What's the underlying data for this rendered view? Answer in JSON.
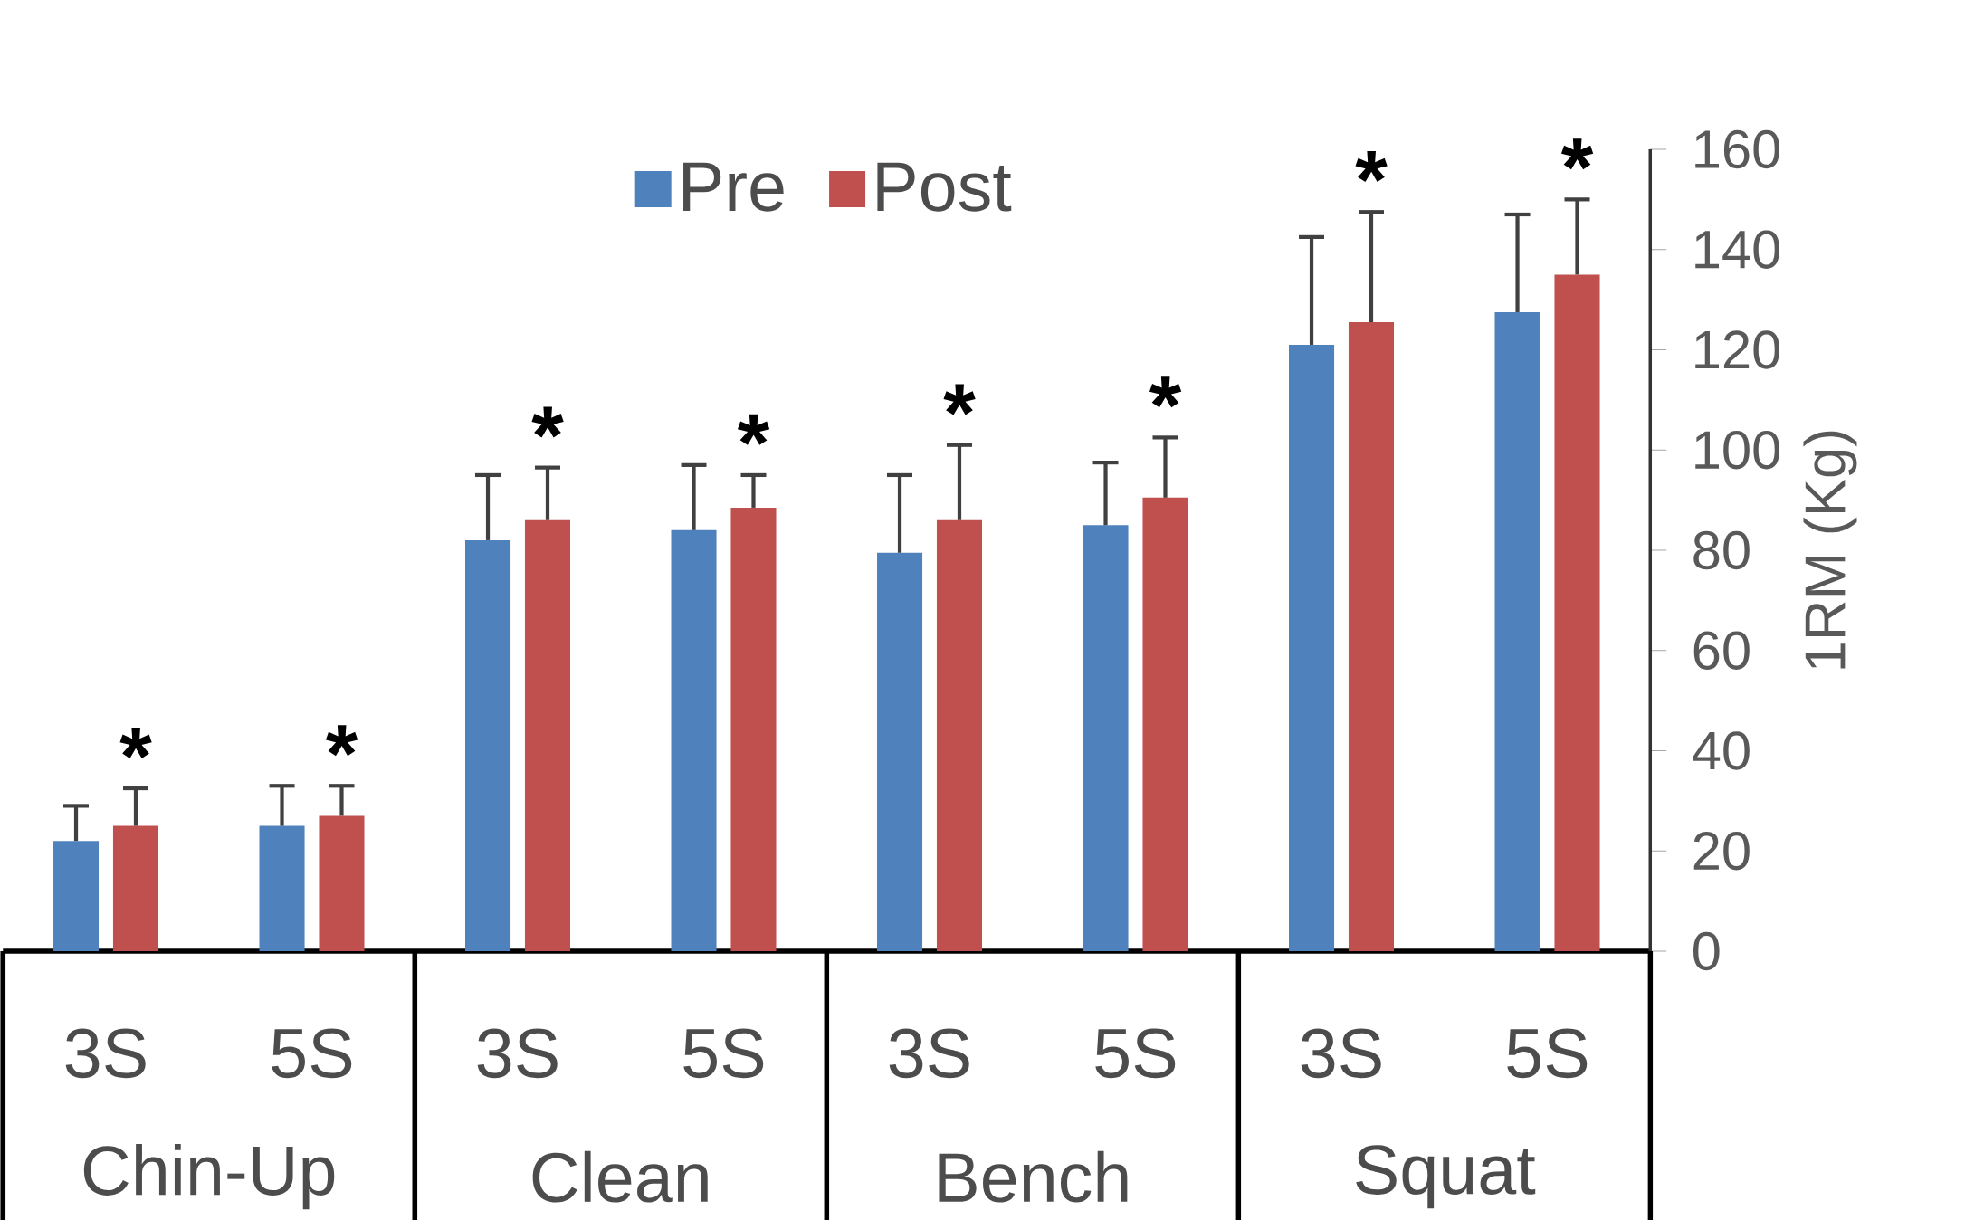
{
  "chart_data": {
    "type": "bar",
    "ylabel": "1RM (Kg)",
    "categories": [
      "3S",
      "5S",
      "3S",
      "5S",
      "3S",
      "5S",
      "3S",
      "5S"
    ],
    "series": [
      {
        "name": "Pre",
        "color": "#4f81bd",
        "values": [
          22,
          25,
          82,
          84,
          79.5,
          85,
          121,
          127.5
        ],
        "errors": [
          [
            22,
            29
          ],
          [
            25,
            33
          ],
          [
            82,
            95
          ],
          [
            84,
            97
          ],
          [
            79.5,
            95
          ],
          [
            85,
            97.5
          ],
          [
            121,
            142.5
          ],
          [
            127.5,
            147
          ]
        ]
      },
      {
        "name": "Post",
        "color": "#c0504d",
        "values": [
          25,
          27,
          86,
          88.5,
          86,
          90.5,
          125.5,
          135
        ],
        "errors": [
          [
            25,
            32.5
          ],
          [
            27,
            33
          ],
          [
            86,
            96.5
          ],
          [
            88.5,
            95
          ],
          [
            86,
            101
          ],
          [
            90.5,
            102.5
          ],
          [
            125.5,
            147.5
          ],
          [
            135,
            150
          ]
        ],
        "value_labels": [
          "*",
          "*",
          "*",
          "*",
          "*",
          "*",
          "*",
          "*"
        ]
      }
    ],
    "annotations": [
      "Chin-Up",
      "Clean",
      "Bench",
      "Squat"
    ],
    "ylim": [
      0,
      160
    ],
    "yticks": [
      0,
      20,
      40,
      60,
      80,
      100,
      120,
      140,
      160
    ],
    "legend": "top",
    "grid": false
  }
}
